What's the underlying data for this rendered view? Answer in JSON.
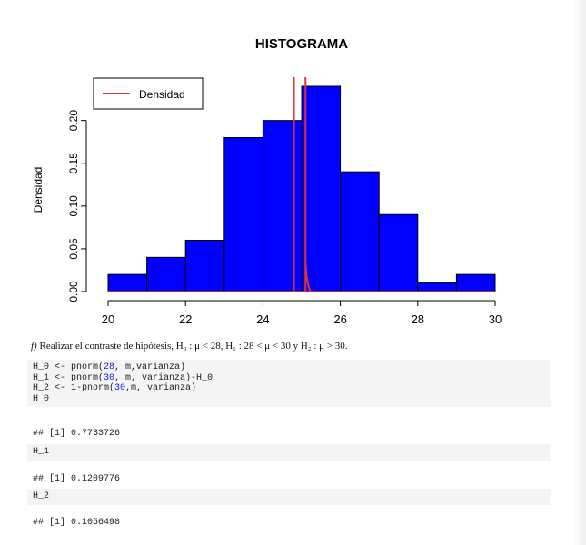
{
  "chart_data": {
    "type": "bar",
    "title": "HISTOGRAMA",
    "xlabel": "",
    "ylabel": "Densidad",
    "bin_edges": [
      20,
      21,
      22,
      23,
      24,
      25,
      26,
      27,
      28,
      29,
      30
    ],
    "values": [
      0.02,
      0.04,
      0.06,
      0.18,
      0.2,
      0.24,
      0.14,
      0.09,
      0.01,
      0.02
    ],
    "bar_color": "#0000ff",
    "xlim": [
      20,
      30
    ],
    "ylim": [
      0,
      0.24
    ],
    "x_ticks": [
      "20",
      "22",
      "24",
      "26",
      "28",
      "30"
    ],
    "y_ticks": [
      "0.00",
      "0.05",
      "0.10",
      "0.15",
      "0.20"
    ],
    "legend": {
      "entries": [
        "Densidad"
      ],
      "color": "#e0303a",
      "position": "top-left"
    },
    "vertical_lines": [
      24.8,
      25.1
    ],
    "line_color": "#e0303a",
    "grid": false
  },
  "task": {
    "marker": "f)",
    "text": " Realizar el contraste de hipótesis, H₀ : μ < 28, H₁ : 28 < μ < 30 y H₂ : μ > 30."
  },
  "code": {
    "block1": [
      {
        "pre": "H_0 <- ",
        "fn": "pnorm(",
        "arg": "28",
        "post": ", m,varianza)"
      },
      {
        "pre": "H_1 <- ",
        "fn": "pnorm(",
        "arg": "30",
        "post": ", m, varianza)-H_0"
      },
      {
        "pre": "H_2 <- ",
        "fn": "1-pnorm(",
        "arg": "30",
        "post": ",m, varianza)"
      },
      {
        "pre": "H_0",
        "fn": "",
        "arg": "",
        "post": ""
      }
    ],
    "out1": "## [1] 0.7733726",
    "block2": "H_1",
    "out2": "## [1] 0.1209776",
    "block3": "H_2",
    "out3": "## [1] 0.1056498"
  }
}
